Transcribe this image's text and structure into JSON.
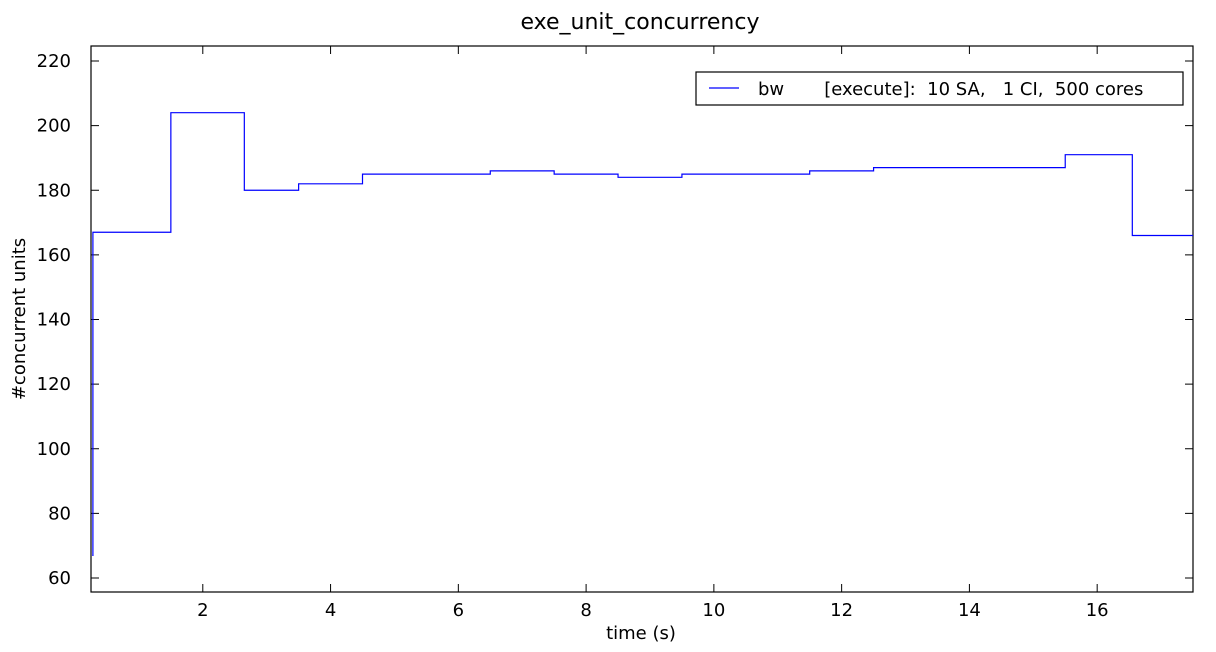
{
  "chart_data": {
    "type": "line",
    "step": "post",
    "title": "exe_unit_concurrency",
    "xlabel": "time (s)",
    "ylabel": "#concurrent units",
    "xlim": [
      0.25,
      17.5
    ],
    "ylim": [
      60,
      220
    ],
    "xticks": [
      2,
      4,
      6,
      8,
      10,
      12,
      14,
      16
    ],
    "yticks": [
      60,
      80,
      100,
      120,
      140,
      160,
      180,
      200,
      220
    ],
    "grid": false,
    "legend": "top-right",
    "series": [
      {
        "name": "bw       [execute]:  10 SA,   1 CI,  500 cores",
        "color": "#0000ff",
        "x": [
          0.27,
          0.28,
          1.5,
          2.65,
          3.5,
          4.5,
          6.5,
          7.5,
          8.5,
          9.5,
          11.5,
          12.5,
          15.5,
          16.55,
          17.5
        ],
        "y": [
          67,
          167,
          204,
          180,
          182,
          185,
          186,
          185,
          184,
          185,
          186,
          187,
          191,
          166,
          166
        ]
      }
    ]
  }
}
